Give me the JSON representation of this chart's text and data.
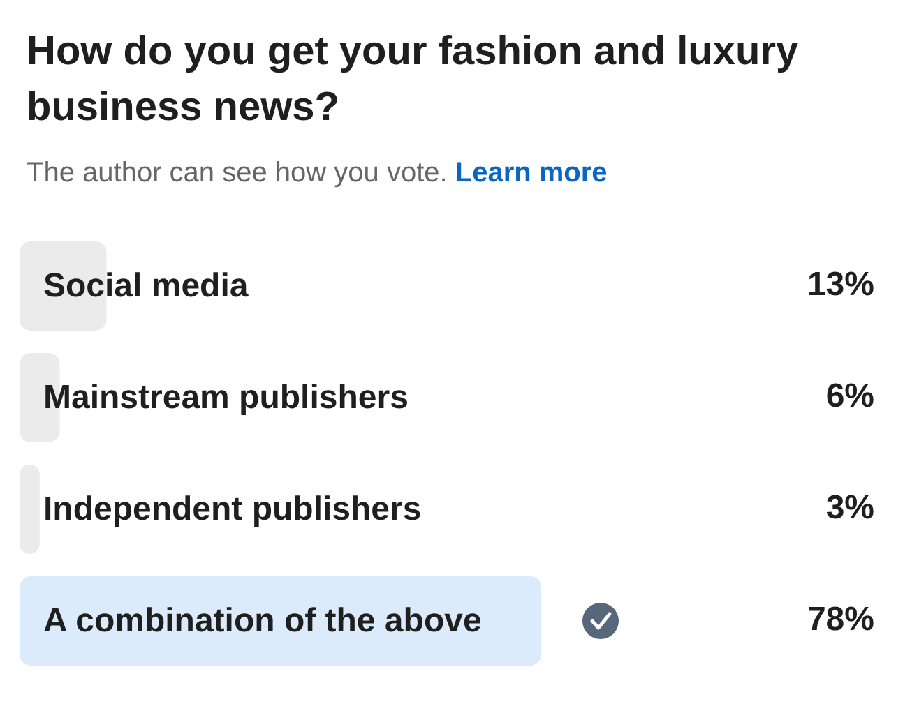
{
  "chart_data": {
    "type": "bar",
    "orientation": "horizontal",
    "title": "How do you get your fashion and luxury business news?",
    "subtitle": "The author can see how you vote.",
    "annotations": [
      "Learn more"
    ],
    "categories": [
      "Social media",
      "Mainstream publishers",
      "Independent publishers",
      "A combination of the above"
    ],
    "values": [
      13,
      6,
      3,
      78
    ],
    "colors": [
      "#ebebeb",
      "#ebebeb",
      "#ebebeb",
      "#dcebfb"
    ],
    "value_labels": [
      "13%",
      "6%",
      "3%",
      "78%"
    ]
  }
}
